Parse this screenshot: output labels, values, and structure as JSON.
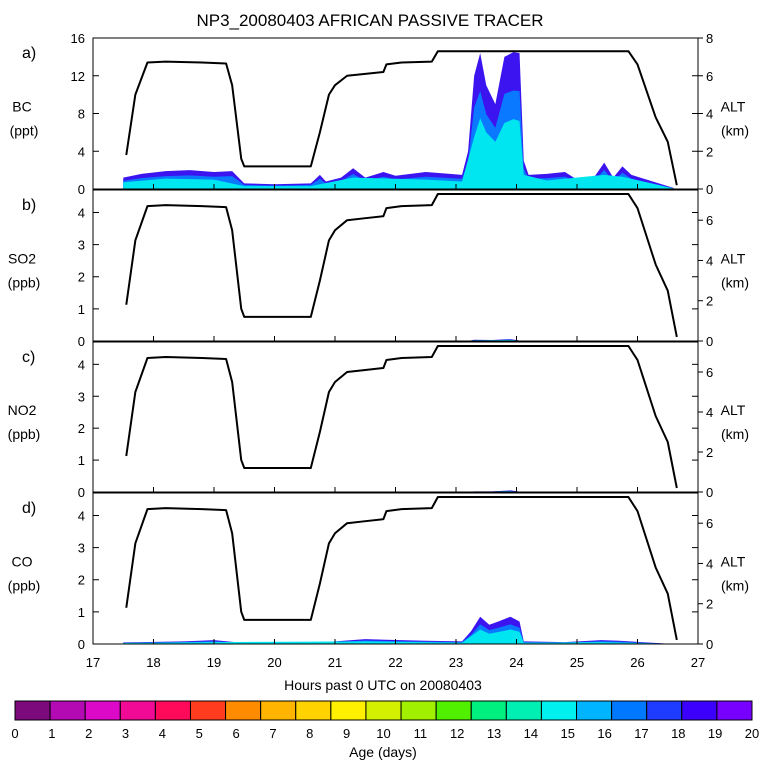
{
  "title": "NP3_20080403 AFRICAN PASSIVE TRACER",
  "x_axis": {
    "label": "Hours past 0 UTC on 20080403",
    "range": [
      17,
      27
    ],
    "ticks": [
      "17",
      "18",
      "19",
      "20",
      "21",
      "22",
      "23",
      "24",
      "25",
      "26",
      "27"
    ]
  },
  "colorbar": {
    "label": "Age (days)",
    "ticks": [
      "0",
      "1",
      "2",
      "3",
      "4",
      "5",
      "6",
      "7",
      "8",
      "9",
      "10",
      "11",
      "12",
      "13",
      "14",
      "15",
      "16",
      "17",
      "18",
      "19",
      "20"
    ],
    "colors": [
      "#7d0a7d",
      "#b40ab4",
      "#dc0ac8",
      "#f00a96",
      "#ff0a5a",
      "#ff3c1e",
      "#ff8c00",
      "#ffb400",
      "#ffd200",
      "#fff000",
      "#d2f000",
      "#a0f000",
      "#50f000",
      "#00f080",
      "#00f0b4",
      "#00f0f0",
      "#00b4ff",
      "#0078ff",
      "#1e3cff",
      "#3c00ff",
      "#7800ff"
    ]
  },
  "chart_data": [
    {
      "panel": "a)",
      "type": "area",
      "ylabel_line1": "BC",
      "ylabel_line2": "(ppt)",
      "ylim": [
        0,
        16
      ],
      "yticks": [
        "0",
        "4",
        "8",
        "12",
        "16"
      ],
      "y2label_line1": "ALT",
      "y2label_line2": "(km)",
      "y2lim": [
        0,
        8
      ],
      "y2ticks": [
        "0",
        "2",
        "4",
        "6",
        "8"
      ],
      "tracer_total": [
        [
          17.5,
          1.2
        ],
        [
          17.8,
          1.6
        ],
        [
          18.2,
          1.9
        ],
        [
          18.6,
          2.0
        ],
        [
          19.0,
          1.8
        ],
        [
          19.3,
          1.9
        ],
        [
          19.5,
          0.6
        ],
        [
          20.0,
          0.5
        ],
        [
          20.6,
          0.6
        ],
        [
          20.75,
          1.5
        ],
        [
          20.85,
          0.8
        ],
        [
          21.1,
          1.2
        ],
        [
          21.3,
          2.2
        ],
        [
          21.5,
          1.2
        ],
        [
          21.8,
          1.8
        ],
        [
          22.0,
          1.4
        ],
        [
          22.5,
          1.8
        ],
        [
          22.9,
          1.6
        ],
        [
          23.1,
          1.5
        ],
        [
          23.2,
          4.0
        ],
        [
          23.3,
          12.0
        ],
        [
          23.4,
          14.4
        ],
        [
          23.5,
          11.0
        ],
        [
          23.65,
          9.0
        ],
        [
          23.8,
          14.0
        ],
        [
          23.95,
          14.5
        ],
        [
          24.05,
          14.4
        ],
        [
          24.12,
          3.0
        ],
        [
          24.2,
          1.5
        ],
        [
          24.5,
          1.6
        ],
        [
          24.8,
          1.8
        ],
        [
          25.0,
          1.0
        ],
        [
          25.3,
          1.4
        ],
        [
          25.45,
          2.8
        ],
        [
          25.6,
          1.2
        ],
        [
          25.75,
          2.4
        ],
        [
          25.9,
          1.5
        ],
        [
          26.2,
          0.9
        ],
        [
          26.4,
          0.5
        ],
        [
          26.6,
          0.1
        ]
      ],
      "tracer_young": [
        [
          17.5,
          0.7
        ],
        [
          18.2,
          1.1
        ],
        [
          19.0,
          1.0
        ],
        [
          19.5,
          0.3
        ],
        [
          20.6,
          0.3
        ],
        [
          21.3,
          1.2
        ],
        [
          22.5,
          1.0
        ],
        [
          23.1,
          0.8
        ],
        [
          23.3,
          5.5
        ],
        [
          23.4,
          7.5
        ],
        [
          23.5,
          6.0
        ],
        [
          23.65,
          5.0
        ],
        [
          23.8,
          7.0
        ],
        [
          23.95,
          7.4
        ],
        [
          24.05,
          7.2
        ],
        [
          24.12,
          1.5
        ],
        [
          24.5,
          0.9
        ],
        [
          25.45,
          1.5
        ],
        [
          25.75,
          1.3
        ],
        [
          26.6,
          0.05
        ]
      ],
      "altitude_km": [
        [
          17.55,
          1.8
        ],
        [
          17.7,
          5.0
        ],
        [
          17.9,
          6.7
        ],
        [
          18.2,
          6.75
        ],
        [
          18.8,
          6.7
        ],
        [
          19.2,
          6.65
        ],
        [
          19.3,
          5.5
        ],
        [
          19.45,
          1.6
        ],
        [
          19.5,
          1.2
        ],
        [
          20.6,
          1.2
        ],
        [
          20.75,
          3.0
        ],
        [
          20.9,
          5.0
        ],
        [
          21.0,
          5.5
        ],
        [
          21.2,
          6.0
        ],
        [
          21.5,
          6.1
        ],
        [
          21.8,
          6.2
        ],
        [
          21.85,
          6.6
        ],
        [
          22.1,
          6.7
        ],
        [
          22.6,
          6.75
        ],
        [
          22.7,
          7.3
        ],
        [
          23.0,
          7.3
        ],
        [
          24.0,
          7.3
        ],
        [
          25.0,
          7.3
        ],
        [
          25.85,
          7.3
        ],
        [
          26.0,
          6.6
        ],
        [
          26.3,
          3.8
        ],
        [
          26.5,
          2.5
        ],
        [
          26.65,
          0.2
        ]
      ]
    },
    {
      "panel": "b)",
      "type": "area",
      "ylabel_line1": "SO2",
      "ylabel_line2": "(ppb)",
      "ylim": [
        0,
        4.7
      ],
      "yticks": [
        "0",
        "1",
        "2",
        "3",
        "4"
      ],
      "y2label_line1": "ALT",
      "y2label_line2": "(km)",
      "y2lim": [
        0,
        7.5
      ],
      "y2ticks": [
        "0",
        "2",
        "4",
        "6"
      ],
      "tracer_total": [
        [
          23.2,
          0.0
        ],
        [
          23.3,
          0.04
        ],
        [
          23.6,
          0.03
        ],
        [
          23.9,
          0.06
        ],
        [
          24.1,
          0.0
        ]
      ],
      "tracer_young": [
        [
          23.3,
          0.02
        ],
        [
          23.9,
          0.03
        ],
        [
          24.1,
          0.0
        ]
      ],
      "altitude_km": [
        [
          17.55,
          1.8
        ],
        [
          17.7,
          5.0
        ],
        [
          17.9,
          6.7
        ],
        [
          18.2,
          6.75
        ],
        [
          18.8,
          6.7
        ],
        [
          19.2,
          6.65
        ],
        [
          19.3,
          5.5
        ],
        [
          19.45,
          1.6
        ],
        [
          19.5,
          1.2
        ],
        [
          20.6,
          1.2
        ],
        [
          20.75,
          3.0
        ],
        [
          20.9,
          5.0
        ],
        [
          21.0,
          5.5
        ],
        [
          21.2,
          6.0
        ],
        [
          21.5,
          6.1
        ],
        [
          21.8,
          6.2
        ],
        [
          21.85,
          6.6
        ],
        [
          22.1,
          6.7
        ],
        [
          22.6,
          6.75
        ],
        [
          22.7,
          7.3
        ],
        [
          23.0,
          7.3
        ],
        [
          24.0,
          7.3
        ],
        [
          25.0,
          7.3
        ],
        [
          25.85,
          7.3
        ],
        [
          26.0,
          6.6
        ],
        [
          26.3,
          3.8
        ],
        [
          26.5,
          2.5
        ],
        [
          26.65,
          0.2
        ]
      ]
    },
    {
      "panel": "c)",
      "type": "area",
      "ylabel_line1": "NO2",
      "ylabel_line2": "(ppb)",
      "ylim": [
        0,
        4.7
      ],
      "yticks": [
        "0",
        "1",
        "2",
        "3",
        "4"
      ],
      "y2label_line1": "ALT",
      "y2label_line2": "(km)",
      "y2lim": [
        0,
        7.5
      ],
      "y2ticks": [
        "0",
        "2",
        "4",
        "6"
      ],
      "tracer_total": [
        [
          23.2,
          0.0
        ],
        [
          23.3,
          0.02
        ],
        [
          23.6,
          0.02
        ],
        [
          23.9,
          0.05
        ],
        [
          24.1,
          0.0
        ]
      ],
      "tracer_young": [
        [
          23.3,
          0.01
        ],
        [
          23.9,
          0.02
        ],
        [
          24.1,
          0.0
        ]
      ],
      "altitude_km": [
        [
          17.55,
          1.8
        ],
        [
          17.7,
          5.0
        ],
        [
          17.9,
          6.7
        ],
        [
          18.2,
          6.75
        ],
        [
          18.8,
          6.7
        ],
        [
          19.2,
          6.65
        ],
        [
          19.3,
          5.5
        ],
        [
          19.45,
          1.6
        ],
        [
          19.5,
          1.2
        ],
        [
          20.6,
          1.2
        ],
        [
          20.75,
          3.0
        ],
        [
          20.9,
          5.0
        ],
        [
          21.0,
          5.5
        ],
        [
          21.2,
          6.0
        ],
        [
          21.5,
          6.1
        ],
        [
          21.8,
          6.2
        ],
        [
          21.85,
          6.6
        ],
        [
          22.1,
          6.7
        ],
        [
          22.6,
          6.75
        ],
        [
          22.7,
          7.3
        ],
        [
          23.0,
          7.3
        ],
        [
          24.0,
          7.3
        ],
        [
          25.0,
          7.3
        ],
        [
          25.85,
          7.3
        ],
        [
          26.0,
          6.6
        ],
        [
          26.3,
          3.8
        ],
        [
          26.5,
          2.5
        ],
        [
          26.65,
          0.2
        ]
      ]
    },
    {
      "panel": "d)",
      "type": "area",
      "ylabel_line1": "CO",
      "ylabel_line2": "(ppb)",
      "ylim": [
        0,
        4.7
      ],
      "yticks": [
        "0",
        "1",
        "2",
        "3",
        "4"
      ],
      "y2label_line1": "ALT",
      "y2label_line2": "(km)",
      "y2lim": [
        0,
        7.5
      ],
      "y2ticks": [
        "0",
        "2",
        "4",
        "6"
      ],
      "tracer_total": [
        [
          17.5,
          0.05
        ],
        [
          18.5,
          0.08
        ],
        [
          19.0,
          0.12
        ],
        [
          19.4,
          0.05
        ],
        [
          20.6,
          0.02
        ],
        [
          21.0,
          0.08
        ],
        [
          21.5,
          0.15
        ],
        [
          22.5,
          0.1
        ],
        [
          23.1,
          0.08
        ],
        [
          23.25,
          0.4
        ],
        [
          23.4,
          0.85
        ],
        [
          23.55,
          0.6
        ],
        [
          23.7,
          0.7
        ],
        [
          23.9,
          0.85
        ],
        [
          24.05,
          0.7
        ],
        [
          24.12,
          0.08
        ],
        [
          24.8,
          0.06
        ],
        [
          25.4,
          0.12
        ],
        [
          25.7,
          0.1
        ],
        [
          26.6,
          0.0
        ]
      ],
      "tracer_young": [
        [
          17.5,
          0.03
        ],
        [
          19.0,
          0.06
        ],
        [
          21.5,
          0.08
        ],
        [
          23.1,
          0.04
        ],
        [
          23.4,
          0.45
        ],
        [
          23.55,
          0.32
        ],
        [
          23.9,
          0.45
        ],
        [
          24.05,
          0.38
        ],
        [
          24.12,
          0.04
        ],
        [
          25.4,
          0.06
        ],
        [
          26.6,
          0.0
        ]
      ],
      "altitude_km": [
        [
          17.55,
          1.8
        ],
        [
          17.7,
          5.0
        ],
        [
          17.9,
          6.7
        ],
        [
          18.2,
          6.75
        ],
        [
          18.8,
          6.7
        ],
        [
          19.2,
          6.65
        ],
        [
          19.3,
          5.5
        ],
        [
          19.45,
          1.6
        ],
        [
          19.5,
          1.2
        ],
        [
          20.6,
          1.2
        ],
        [
          20.75,
          3.0
        ],
        [
          20.9,
          5.0
        ],
        [
          21.0,
          5.5
        ],
        [
          21.2,
          6.0
        ],
        [
          21.5,
          6.1
        ],
        [
          21.8,
          6.2
        ],
        [
          21.85,
          6.6
        ],
        [
          22.1,
          6.7
        ],
        [
          22.6,
          6.75
        ],
        [
          22.7,
          7.3
        ],
        [
          23.0,
          7.3
        ],
        [
          24.0,
          7.3
        ],
        [
          25.0,
          7.3
        ],
        [
          25.85,
          7.3
        ],
        [
          26.0,
          6.6
        ],
        [
          26.3,
          3.8
        ],
        [
          26.5,
          2.5
        ],
        [
          26.65,
          0.2
        ]
      ]
    }
  ]
}
